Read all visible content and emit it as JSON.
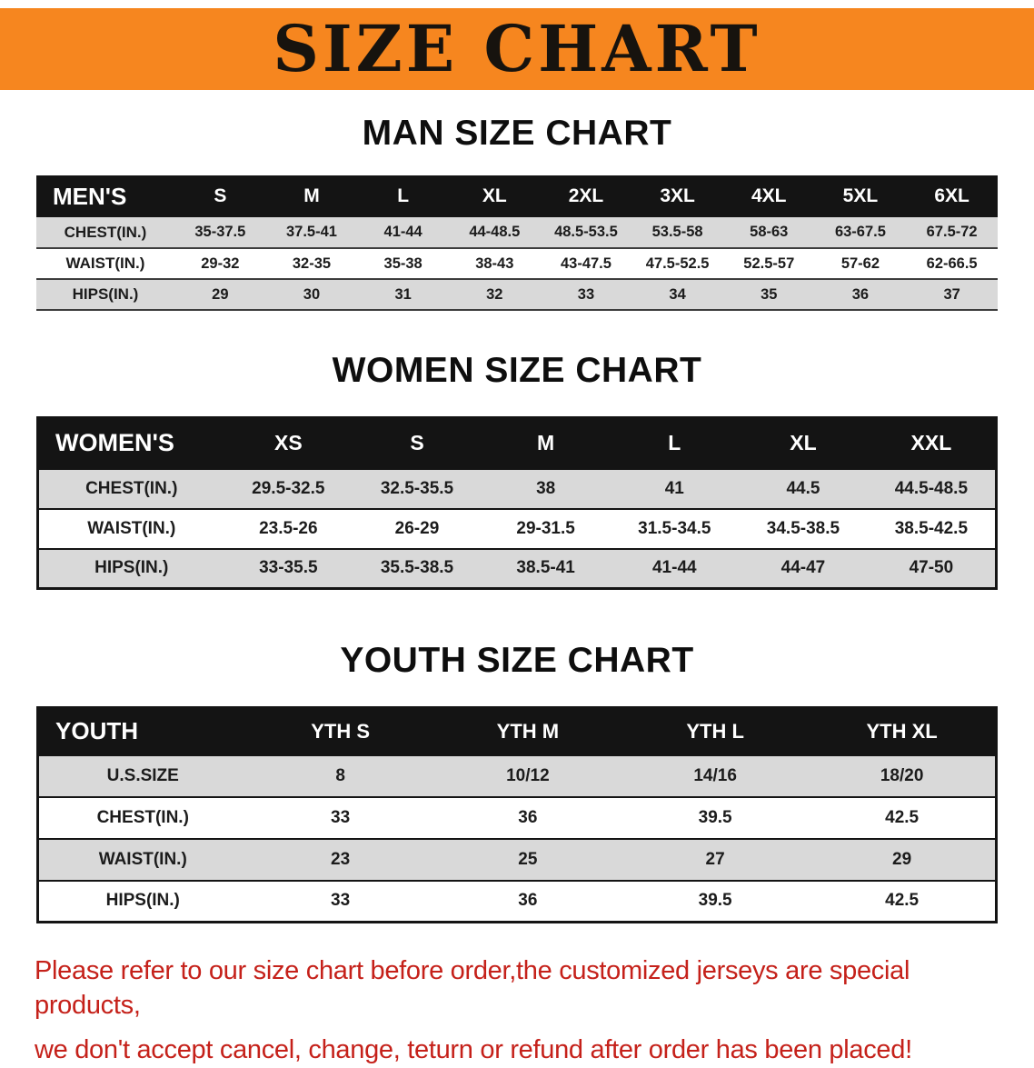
{
  "page": {
    "banner_title": "SIZE CHART"
  },
  "colors": {
    "banner_bg": "#f6861f",
    "table_header_bg": "#141414",
    "row_stripe_bg": "#d9d9d9",
    "footer_text": "#c5211a"
  },
  "sections": [
    {
      "heading": "MAN SIZE CHART",
      "table": {
        "corner": "MEN'S",
        "columns": [
          "S",
          "M",
          "L",
          "XL",
          "2XL",
          "3XL",
          "4XL",
          "5XL",
          "6XL"
        ],
        "rows": [
          {
            "label": "CHEST(IN.)",
            "values": [
              "35-37.5",
              "37.5-41",
              "41-44",
              "44-48.5",
              "48.5-53.5",
              "53.5-58",
              "58-63",
              "63-67.5",
              "67.5-72"
            ]
          },
          {
            "label": "WAIST(IN.)",
            "values": [
              "29-32",
              "32-35",
              "35-38",
              "38-43",
              "43-47.5",
              "47.5-52.5",
              "52.5-57",
              "57-62",
              "62-66.5"
            ]
          },
          {
            "label": "HIPS(IN.)",
            "values": [
              "29",
              "30",
              "31",
              "32",
              "33",
              "34",
              "35",
              "36",
              "37"
            ]
          }
        ]
      }
    },
    {
      "heading": "WOMEN SIZE CHART",
      "table": {
        "corner": "WOMEN'S",
        "columns": [
          "XS",
          "S",
          "M",
          "L",
          "XL",
          "XXL"
        ],
        "rows": [
          {
            "label": "CHEST(IN.)",
            "values": [
              "29.5-32.5",
              "32.5-35.5",
              "38",
              "41",
              "44.5",
              "44.5-48.5"
            ]
          },
          {
            "label": "WAIST(IN.)",
            "values": [
              "23.5-26",
              "26-29",
              "29-31.5",
              "31.5-34.5",
              "34.5-38.5",
              "38.5-42.5"
            ]
          },
          {
            "label": "HIPS(IN.)",
            "values": [
              "33-35.5",
              "35.5-38.5",
              "38.5-41",
              "41-44",
              "44-47",
              "47-50"
            ]
          }
        ]
      }
    },
    {
      "heading": "YOUTH SIZE CHART",
      "table": {
        "corner": "YOUTH",
        "columns": [
          "YTH S",
          "YTH M",
          "YTH L",
          "YTH XL"
        ],
        "rows": [
          {
            "label": "U.S.SIZE",
            "values": [
              "8",
              "10/12",
              "14/16",
              "18/20"
            ]
          },
          {
            "label": "CHEST(IN.)",
            "values": [
              "33",
              "36",
              "39.5",
              "42.5"
            ]
          },
          {
            "label": "WAIST(IN.)",
            "values": [
              "23",
              "25",
              "27",
              "29"
            ]
          },
          {
            "label": "HIPS(IN.)",
            "values": [
              "33",
              "36",
              "39.5",
              "42.5"
            ]
          }
        ]
      }
    }
  ],
  "footer": {
    "line1": "Please refer to our size chart before order,the customized jerseys are special products,",
    "line2": "we don't accept cancel, change, teturn or refund after order has been placed!"
  }
}
